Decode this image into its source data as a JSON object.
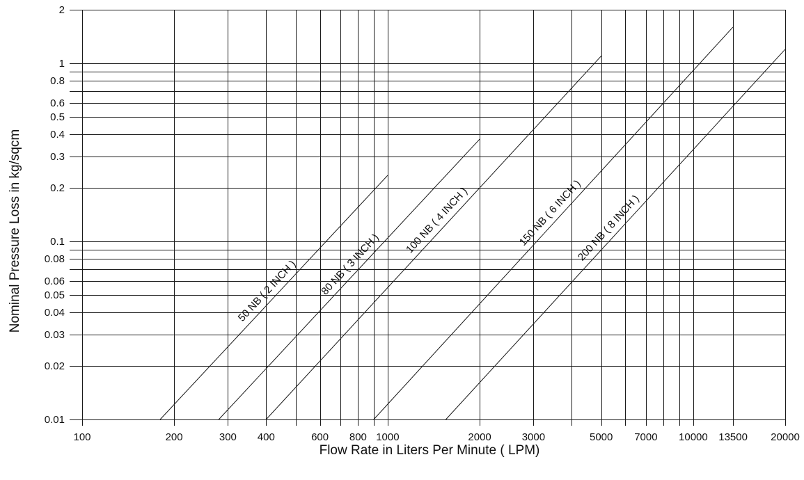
{
  "chart_data": {
    "type": "line",
    "title": "",
    "xlabel": "Flow Rate in Liters Per Minute ( LPM)",
    "ylabel": "Nominal Pressure Loss in kg/sqcm",
    "x_scale": "log",
    "y_scale": "log",
    "xlim": [
      100,
      20000
    ],
    "ylim": [
      0.01,
      2
    ],
    "grid": true,
    "legend": "none",
    "x_ticks": [
      {
        "value": 100,
        "label": "100"
      },
      {
        "value": 200,
        "label": "200"
      },
      {
        "value": 300,
        "label": "300"
      },
      {
        "value": 400,
        "label": "400"
      },
      {
        "value": 600,
        "label": "600"
      },
      {
        "value": 800,
        "label": "800"
      },
      {
        "value": 1000,
        "label": "1000"
      },
      {
        "value": 2000,
        "label": "2000"
      },
      {
        "value": 3000,
        "label": "3000"
      },
      {
        "value": 5000,
        "label": "5000"
      },
      {
        "value": 7000,
        "label": "7000"
      },
      {
        "value": 10000,
        "label": "10000"
      },
      {
        "value": 13500,
        "label": "13500"
      },
      {
        "value": 20000,
        "label": "20000"
      }
    ],
    "x_gridlines": [
      100,
      200,
      300,
      400,
      500,
      600,
      700,
      800,
      900,
      1000,
      2000,
      3000,
      4000,
      5000,
      6000,
      7000,
      8000,
      9000,
      10000,
      13500,
      20000
    ],
    "y_ticks": [
      {
        "value": 0.01,
        "label": "0.01"
      },
      {
        "value": 0.02,
        "label": "0.02"
      },
      {
        "value": 0.03,
        "label": "0.03"
      },
      {
        "value": 0.04,
        "label": "0.04"
      },
      {
        "value": 0.05,
        "label": "0.05"
      },
      {
        "value": 0.06,
        "label": "0.06"
      },
      {
        "value": 0.08,
        "label": "0.08"
      },
      {
        "value": 0.1,
        "label": "0.1"
      },
      {
        "value": 0.2,
        "label": "0.2"
      },
      {
        "value": 0.3,
        "label": "0.3"
      },
      {
        "value": 0.4,
        "label": "0.4"
      },
      {
        "value": 0.5,
        "label": "0.5"
      },
      {
        "value": 0.6,
        "label": "0.6"
      },
      {
        "value": 0.8,
        "label": "0.8"
      },
      {
        "value": 1,
        "label": "1"
      },
      {
        "value": 2,
        "label": "2"
      }
    ],
    "y_gridlines": [
      0.01,
      0.02,
      0.03,
      0.04,
      0.05,
      0.06,
      0.07,
      0.08,
      0.09,
      0.1,
      0.2,
      0.3,
      0.4,
      0.5,
      0.6,
      0.7,
      0.8,
      0.9,
      1,
      2
    ],
    "series": [
      {
        "name": "50 NB ( 2 INCH )",
        "x": [
          180,
          1000
        ],
        "y": [
          0.01,
          0.235
        ]
      },
      {
        "name": "80 NB ( 3 INCH )",
        "x": [
          280,
          2000
        ],
        "y": [
          0.01,
          0.375
        ]
      },
      {
        "name": "100 NB ( 4 INCH )",
        "x": [
          400,
          5000
        ],
        "y": [
          0.01,
          1.1
        ]
      },
      {
        "name": "150 NB ( 6 INCH )",
        "x": [
          900,
          13500
        ],
        "y": [
          0.01,
          1.6
        ]
      },
      {
        "name": "200 NB ( 8 INCH )",
        "x": [
          1550,
          20000
        ],
        "y": [
          0.01,
          1.2
        ]
      }
    ]
  }
}
